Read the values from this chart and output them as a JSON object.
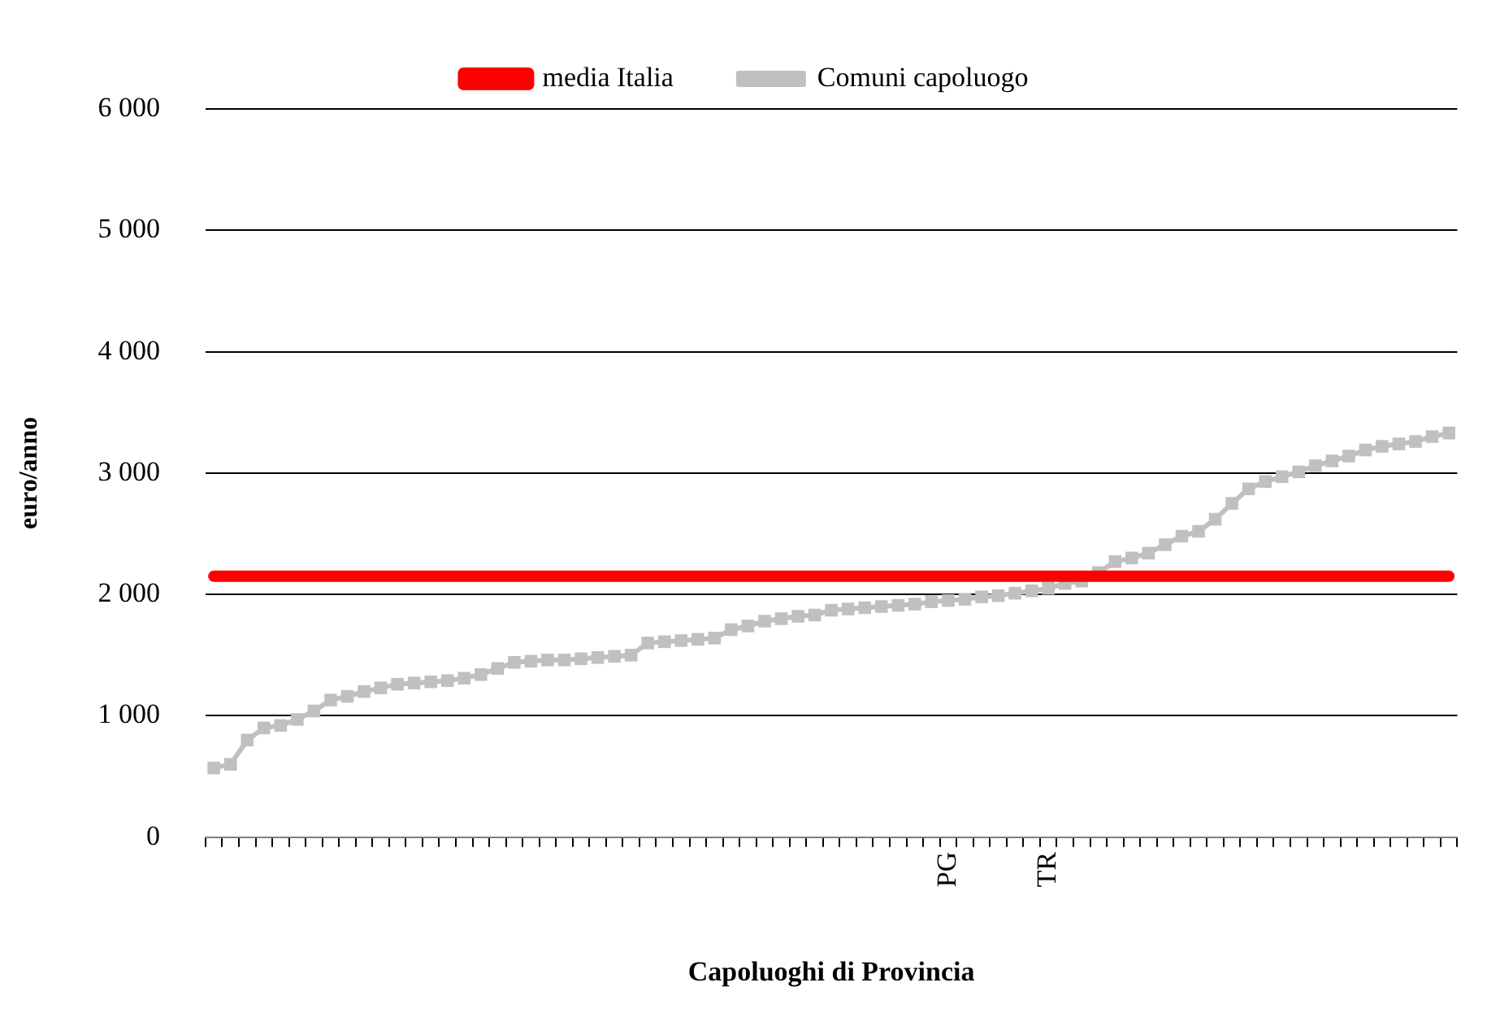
{
  "chart_data": {
    "type": "line",
    "xlabel": "Capoluoghi di Provincia",
    "ylabel": "euro/anno",
    "categories": [
      null,
      null,
      null,
      null,
      null,
      null,
      null,
      null,
      null,
      null,
      null,
      null,
      null,
      null,
      null,
      null,
      null,
      null,
      null,
      null,
      null,
      null,
      null,
      null,
      null,
      null,
      null,
      null,
      null,
      null,
      null,
      null,
      null,
      null,
      null,
      null,
      null,
      null,
      null,
      null,
      null,
      null,
      null,
      null,
      "PG",
      null,
      null,
      null,
      null,
      null,
      "TR",
      null,
      null,
      null,
      null,
      null,
      null,
      null,
      null,
      null,
      null,
      null,
      null,
      null,
      null,
      null,
      null,
      null,
      null,
      null,
      null,
      null,
      null,
      null,
      null
    ],
    "series": [
      {
        "name": "Comuni capoluogo",
        "color": "#c0c0c0",
        "marker": "square",
        "values": [
          570,
          600,
          800,
          900,
          920,
          970,
          1040,
          1130,
          1160,
          1200,
          1230,
          1260,
          1270,
          1280,
          1290,
          1310,
          1340,
          1390,
          1440,
          1450,
          1460,
          1460,
          1470,
          1480,
          1490,
          1500,
          1600,
          1610,
          1620,
          1630,
          1640,
          1710,
          1740,
          1780,
          1800,
          1820,
          1830,
          1870,
          1880,
          1890,
          1900,
          1910,
          1920,
          1940,
          1950,
          1960,
          1980,
          1990,
          2010,
          2030,
          2050,
          2090,
          2110,
          2180,
          2270,
          2300,
          2340,
          2410,
          2480,
          2520,
          2620,
          2750,
          2870,
          2930,
          2970,
          3010,
          3060,
          3100,
          3140,
          3190,
          3220,
          3240,
          3260,
          3300,
          3330
        ]
      },
      {
        "name": "media Italia",
        "color": "#ff0000",
        "marker": "none",
        "values": [
          2150,
          2150,
          2150,
          2150,
          2150,
          2150,
          2150,
          2150,
          2150,
          2150,
          2150,
          2150,
          2150,
          2150,
          2150,
          2150,
          2150,
          2150,
          2150,
          2150,
          2150,
          2150,
          2150,
          2150,
          2150,
          2150,
          2150,
          2150,
          2150,
          2150,
          2150,
          2150,
          2150,
          2150,
          2150,
          2150,
          2150,
          2150,
          2150,
          2150,
          2150,
          2150,
          2150,
          2150,
          2150,
          2150,
          2150,
          2150,
          2150,
          2150,
          2150,
          2150,
          2150,
          2150,
          2150,
          2150,
          2150,
          2150,
          2150,
          2150,
          2150,
          2150,
          2150,
          2150,
          2150,
          2150,
          2150,
          2150,
          2150,
          2150,
          2150,
          2150,
          2150,
          2150,
          2150
        ]
      }
    ],
    "ylim": [
      0,
      6000
    ],
    "yticks": [
      0,
      {
        "value": 1000,
        "label": "1 000"
      },
      {
        "value": 2000,
        "label": "2 000"
      },
      {
        "value": 3000,
        "label": "3 000"
      },
      {
        "value": 4000,
        "label": "4 000"
      },
      {
        "value": 5000,
        "label": "5 000"
      },
      {
        "value": 6000,
        "label": "6 000"
      }
    ],
    "grid": "y",
    "legend": "top"
  }
}
